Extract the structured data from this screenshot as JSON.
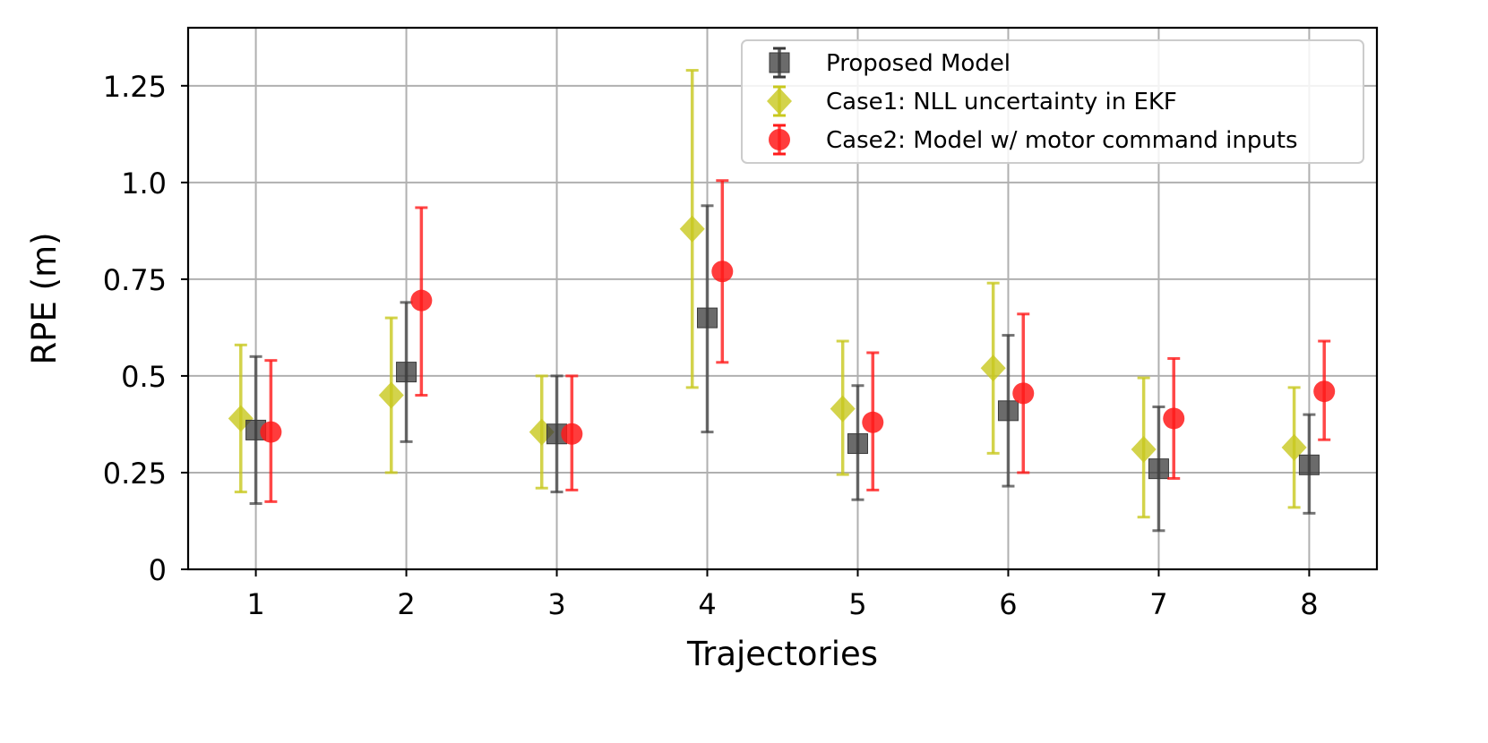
{
  "chart_data": {
    "type": "scatter",
    "xlabel": "Trajectories",
    "ylabel": "RPE (m)",
    "x": [
      1,
      2,
      3,
      4,
      5,
      6,
      7,
      8
    ],
    "xlim": [
      0.55,
      8.45
    ],
    "ylim": [
      0,
      1.4
    ],
    "yticks": [
      0,
      0.25,
      0.5,
      0.75,
      1.0,
      1.25
    ],
    "ytick_labels": [
      "0",
      "0.25",
      "0.5",
      "0.75",
      "1.0",
      "1.25"
    ],
    "xtick_labels": [
      "1",
      "2",
      "3",
      "4",
      "5",
      "6",
      "7",
      "8"
    ],
    "grid": true,
    "legend_position": "top-right",
    "series": [
      {
        "name": "Proposed Model",
        "marker": "square",
        "color": "#3a3a3a",
        "x_offset": 0,
        "values": [
          0.36,
          0.51,
          0.35,
          0.65,
          0.325,
          0.41,
          0.26,
          0.27
        ],
        "err_low": [
          0.17,
          0.33,
          0.2,
          0.355,
          0.18,
          0.215,
          0.1,
          0.145
        ],
        "err_high": [
          0.55,
          0.69,
          0.5,
          0.94,
          0.475,
          0.605,
          0.42,
          0.4
        ]
      },
      {
        "name": "Case1: NLL uncertainty in EKF",
        "marker": "diamond",
        "color": "#c8c81e",
        "x_offset": -0.1,
        "values": [
          0.39,
          0.45,
          0.355,
          0.88,
          0.415,
          0.52,
          0.31,
          0.315
        ],
        "err_low": [
          0.2,
          0.25,
          0.21,
          0.47,
          0.245,
          0.3,
          0.135,
          0.16
        ],
        "err_high": [
          0.58,
          0.65,
          0.5,
          1.29,
          0.59,
          0.74,
          0.495,
          0.47
        ]
      },
      {
        "name": "Case2: Model w/ motor command inputs",
        "marker": "circle",
        "color": "#ff1a1a",
        "x_offset": 0.1,
        "values": [
          0.355,
          0.695,
          0.35,
          0.77,
          0.38,
          0.455,
          0.39,
          0.46
        ],
        "err_low": [
          0.175,
          0.45,
          0.205,
          0.535,
          0.205,
          0.25,
          0.235,
          0.335
        ],
        "err_high": [
          0.54,
          0.935,
          0.5,
          1.005,
          0.56,
          0.66,
          0.545,
          0.59
        ]
      }
    ]
  }
}
